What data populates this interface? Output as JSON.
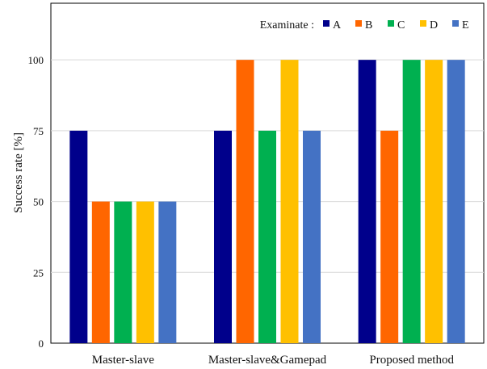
{
  "chart_data": {
    "type": "bar",
    "title": "",
    "xlabel": "",
    "ylabel": "Success rate [%]",
    "ylim": [
      0,
      120
    ],
    "yticks": [
      0,
      25,
      50,
      75,
      100
    ],
    "grid": true,
    "legend": {
      "title": "Examinate :",
      "position": "top-right"
    },
    "categories": [
      "Master-slave",
      "Master-slave&Gamepad",
      "Proposed method"
    ],
    "series": [
      {
        "name": "A",
        "color": "#00008B",
        "values": [
          75,
          75,
          100
        ]
      },
      {
        "name": "B",
        "color": "#FF6600",
        "values": [
          50,
          100,
          75
        ]
      },
      {
        "name": "C",
        "color": "#00B050",
        "values": [
          50,
          75,
          100
        ]
      },
      {
        "name": "D",
        "color": "#FFC000",
        "values": [
          50,
          100,
          100
        ]
      },
      {
        "name": "E",
        "color": "#4472C4",
        "values": [
          50,
          75,
          100
        ]
      }
    ]
  }
}
